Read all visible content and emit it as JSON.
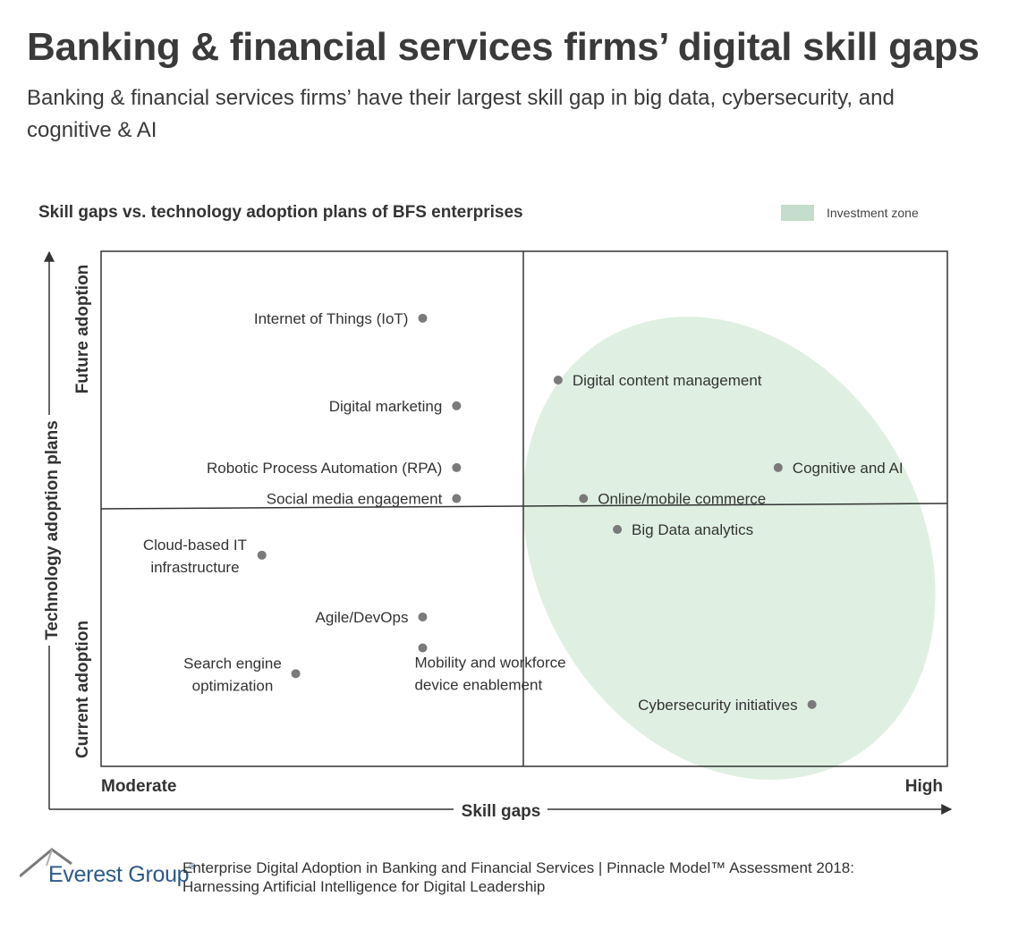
{
  "title": "Banking & financial services firms’ digital skill gaps",
  "subtitle": "Banking & financial services firms’ have their largest skill gap in big data, cybersecurity, and cognitive & AI",
  "legend": {
    "label": "Investment zone",
    "color": "#c5ddcc"
  },
  "chart_data": {
    "type": "scatter",
    "title": "Skill gaps vs. technology adoption plans of BFS enterprises",
    "xlabel": "Skill gaps",
    "ylabel": "Technology adoption plans",
    "x_low_label": "Moderate",
    "x_high_label": "High",
    "y_low_label": "Current adoption",
    "y_high_label": "Future adoption",
    "xlim": [
      0,
      100
    ],
    "ylim": [
      0,
      100
    ],
    "quadrant_split": {
      "x": 50,
      "y": 50
    },
    "point_color": "#7a7a7a",
    "zone_color": "#dff0e2",
    "points": [
      {
        "label": "Internet of Things (IoT)",
        "x": 38,
        "y": 87,
        "anchor": "left"
      },
      {
        "label": "Digital marketing",
        "x": 42,
        "y": 70,
        "anchor": "left"
      },
      {
        "label": "Robotic Process Automation (RPA)",
        "x": 42,
        "y": 58,
        "anchor": "left"
      },
      {
        "label": "Social media engagement",
        "x": 42,
        "y": 52,
        "anchor": "left"
      },
      {
        "label": "Cloud-based IT infrastructure",
        "x": 19,
        "y": 41,
        "anchor": "left"
      },
      {
        "label": "Agile/DevOps",
        "x": 38,
        "y": 29,
        "anchor": "left"
      },
      {
        "label": "Mobility and workforce device enablement",
        "x": 38,
        "y": 23,
        "anchor": "below"
      },
      {
        "label": "Search engine optimization",
        "x": 23,
        "y": 18,
        "anchor": "left"
      },
      {
        "label": "Digital content management",
        "x": 54,
        "y": 75,
        "anchor": "right"
      },
      {
        "label": "Cognitive and AI",
        "x": 80,
        "y": 58,
        "anchor": "right"
      },
      {
        "label": "Online/mobile commerce",
        "x": 57,
        "y": 52,
        "anchor": "right"
      },
      {
        "label": "Big Data analytics",
        "x": 61,
        "y": 46,
        "anchor": "right"
      },
      {
        "label": "Cybersecurity initiatives",
        "x": 84,
        "y": 12,
        "anchor": "left"
      }
    ]
  },
  "footer": {
    "logo_text": "Everest Group",
    "logo_mark": "®",
    "source_line1": "Enterprise Digital Adoption in Banking and Financial Services | Pinnacle Model™ Assessment 2018:",
    "source_line2": "Harnessing Artificial Intelligence for Digital Leadership"
  }
}
